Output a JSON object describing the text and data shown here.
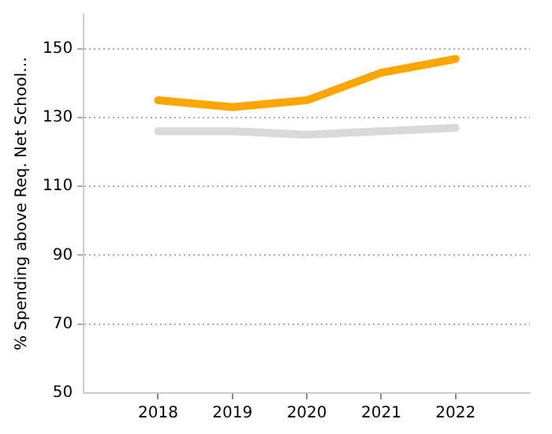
{
  "chart_data": {
    "type": "line",
    "ylabel": "% Spending above Req. Net School…",
    "x": [
      2018,
      2019,
      2020,
      2021,
      2022
    ],
    "series": [
      {
        "color": "#ffa500",
        "values": [
          135,
          133,
          135,
          143,
          147
        ]
      },
      {
        "color": "#d9d9d9",
        "values": [
          126,
          126,
          125,
          126,
          127
        ]
      }
    ],
    "xlim": [
      2017,
      2023
    ],
    "xticks": [
      2018,
      2019,
      2020,
      2021,
      2022
    ],
    "ylim": [
      50,
      160
    ],
    "yticks": [
      50,
      70,
      90,
      110,
      130,
      150
    ],
    "grid": "y",
    "legend": false,
    "marker": "none",
    "line_style": "solid"
  }
}
